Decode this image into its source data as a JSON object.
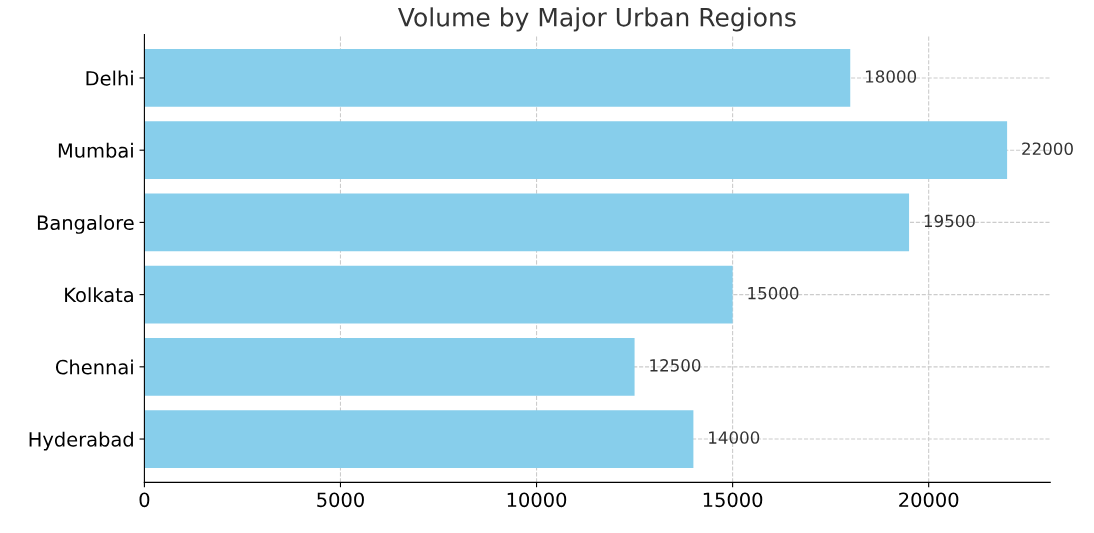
{
  "chart_data": {
    "type": "bar",
    "orientation": "horizontal",
    "title": "Volume by Major Urban Regions",
    "categories": [
      "Delhi",
      "Mumbai",
      "Bangalore",
      "Kolkata",
      "Chennai",
      "Hyderabad"
    ],
    "values": [
      18000,
      22000,
      19500,
      15000,
      12500,
      14000
    ],
    "color": "#87ceeb",
    "xlim": [
      0,
      23100
    ],
    "xticks": [
      0,
      5000,
      10000,
      15000,
      20000
    ],
    "grid": true,
    "data_labels": true
  }
}
